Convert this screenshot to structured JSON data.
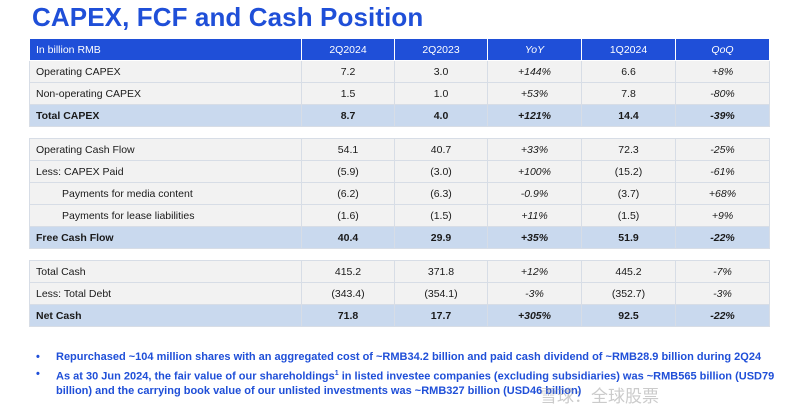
{
  "title": "CAPEX, FCF and Cash Position",
  "table": {
    "header": {
      "label": "In billion RMB",
      "cols": [
        "2Q2024",
        "2Q2023",
        "YoY",
        "1Q2024",
        "QoQ"
      ]
    },
    "section1": [
      {
        "label": "Operating CAPEX",
        "v": [
          "7.2",
          "3.0",
          "+144%",
          "6.6",
          "+8%"
        ]
      },
      {
        "label": "Non-operating CAPEX",
        "v": [
          "1.5",
          "1.0",
          "+53%",
          "7.8",
          "-80%"
        ]
      },
      {
        "label": "Total CAPEX",
        "v": [
          "8.7",
          "4.0",
          "+121%",
          "14.4",
          "-39%"
        ]
      }
    ],
    "section2": [
      {
        "label": "Operating Cash Flow",
        "v": [
          "54.1",
          "40.7",
          "+33%",
          "72.3",
          "-25%"
        ]
      },
      {
        "label": "Less: CAPEX Paid",
        "v": [
          "(5.9)",
          "(3.0)",
          "+100%",
          "(15.2)",
          "-61%"
        ]
      },
      {
        "label": "Payments for media content",
        "v": [
          "(6.2)",
          "(6.3)",
          "-0.9%",
          "(3.7)",
          "+68%"
        ]
      },
      {
        "label": "Payments for lease liabilities",
        "v": [
          "(1.6)",
          "(1.5)",
          "+11%",
          "(1.5)",
          "+9%"
        ]
      },
      {
        "label": "Free Cash Flow",
        "v": [
          "40.4",
          "29.9",
          "+35%",
          "51.9",
          "-22%"
        ]
      }
    ],
    "section3": [
      {
        "label": "Total Cash",
        "v": [
          "415.2",
          "371.8",
          "+12%",
          "445.2",
          "-7%"
        ]
      },
      {
        "label": "Less: Total Debt",
        "v": [
          "(343.4)",
          "(354.1)",
          "-3%",
          "(352.7)",
          "-3%"
        ]
      },
      {
        "label": "Net Cash",
        "v": [
          "71.8",
          "17.7",
          "+305%",
          "92.5",
          "-22%"
        ]
      }
    ]
  },
  "bullets": {
    "marker": "•",
    "b1": "Repurchased ~104 million shares with an aggregated cost of ~RMB34.2 billion and paid cash dividend of ~RMB28.9 billion during 2Q24",
    "b2_pre": "As at 30 Jun 2024, the fair value of our shareholdings",
    "b2_sup": "1",
    "b2_post": " in listed investee companies (excluding subsidiaries) was ~RMB565 billion (USD79 billion) and the carrying book value of our unlisted investments was ~RMB327 billion (USD46 billion)"
  },
  "watermark": "雪球：全球股票"
}
